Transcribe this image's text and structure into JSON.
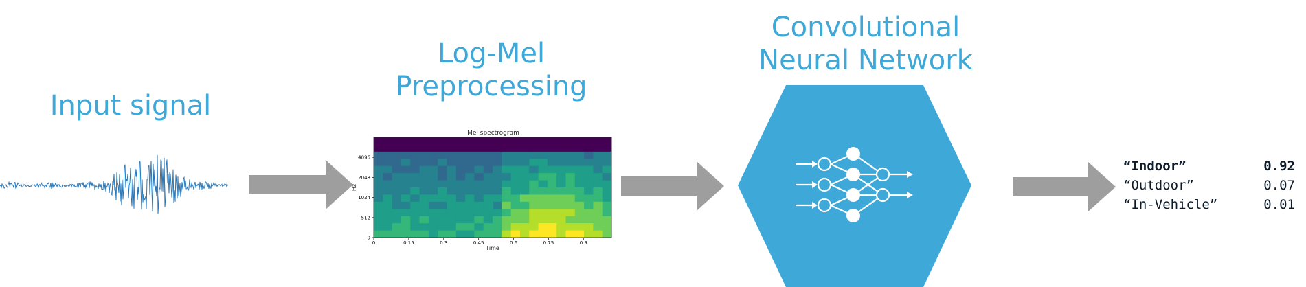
{
  "stages": {
    "input_title": "Input signal",
    "logmel_title_line1": "Log-Mel",
    "logmel_title_line2": "Preprocessing",
    "cnn_title_line1": "Convolutional",
    "cnn_title_line2": "Neural Network"
  },
  "spectrogram": {
    "title": "Mel spectrogram",
    "xlabel": "Time",
    "ylabel": "Hz",
    "x_ticks": [
      "0",
      "0.15",
      "0.3",
      "0.45",
      "0.6",
      "0.75",
      "0.9"
    ],
    "y_ticks": [
      "0",
      "512",
      "1024",
      "2048",
      "4096"
    ]
  },
  "results": [
    {
      "label": "“Indoor”",
      "value": "0.92"
    },
    {
      "label": "“Outdoor”",
      "value": "0.07"
    },
    {
      "label": "“In-Vehicle”",
      "value": "0.01"
    }
  ],
  "colors": {
    "accent": "#3ea8d8",
    "arrow": "#9e9e9e",
    "waveform": "#2a78b8",
    "hexagon": "#3ea8d8"
  },
  "icons": {
    "cnn": "neural-network-icon"
  }
}
